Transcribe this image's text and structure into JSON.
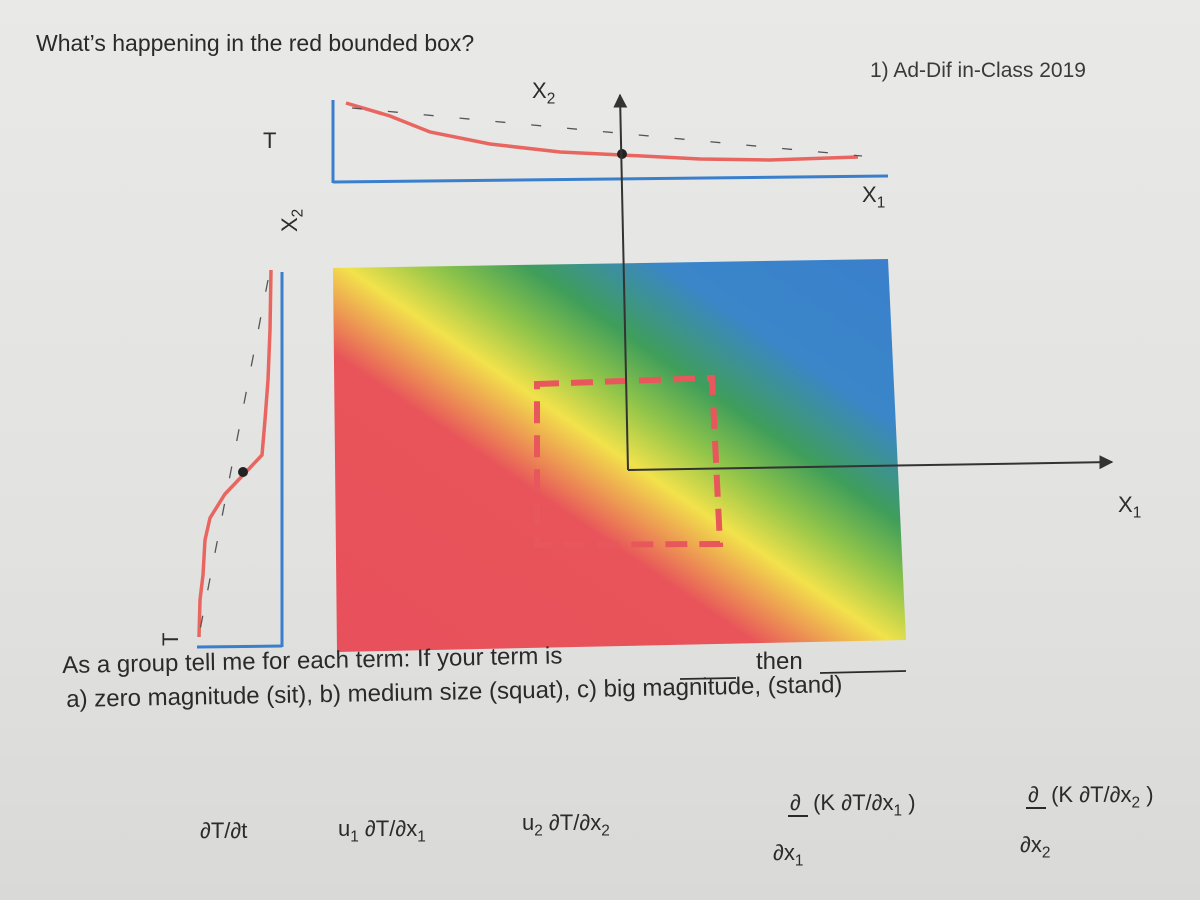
{
  "question": "What’s happening in the red bounded box?",
  "reference": "1) Ad-Dif in-Class 2019",
  "top_profile": {
    "y_label": "T",
    "axis_label_top_main": "X",
    "axis_label_top_sub": "2",
    "axis_label_right_main": "X",
    "axis_label_right_sub": "1"
  },
  "side_profile": {
    "axis_label_main": "X",
    "axis_label_sub": "2",
    "t_label": "T"
  },
  "field": {
    "colors": [
      "#e8505b",
      "#e8545a",
      "#f2e24b",
      "#8fc44a",
      "#3f9e5a",
      "#3a86c9",
      "#3a7fcc"
    ],
    "box_color": "#e8575b",
    "x1_main": "X",
    "x1_sub": "1"
  },
  "instructions": {
    "line1_a": "As a group tell me for each term:  If your term is",
    "line1_b": "then",
    "line2": "a) zero magnitude (sit), b) medium size (squat), c) big magnitude, (stand)"
  },
  "terms": {
    "t1": "∂T/∂t",
    "t2_a": "u",
    "t2_a_sub": "1",
    "t2_b": " ∂T/∂x",
    "t2_b_sub": "1",
    "t3_a": "u",
    "t3_a_sub": "2",
    "t3_b": " ∂T/∂x",
    "t3_b_sub": "2",
    "t4_num_d": "∂",
    "t4_num_main": "(K ∂T/∂x",
    "t4_num_sub": "1",
    "t4_num_close": " )",
    "t4_den_main": "∂x",
    "t4_den_sub": "1",
    "t5_num_d": "∂",
    "t5_num_main": "(K ∂T/∂x",
    "t5_num_sub": "2",
    "t5_num_close": " )",
    "t5_den_main": "∂x",
    "t5_den_sub": "2"
  }
}
